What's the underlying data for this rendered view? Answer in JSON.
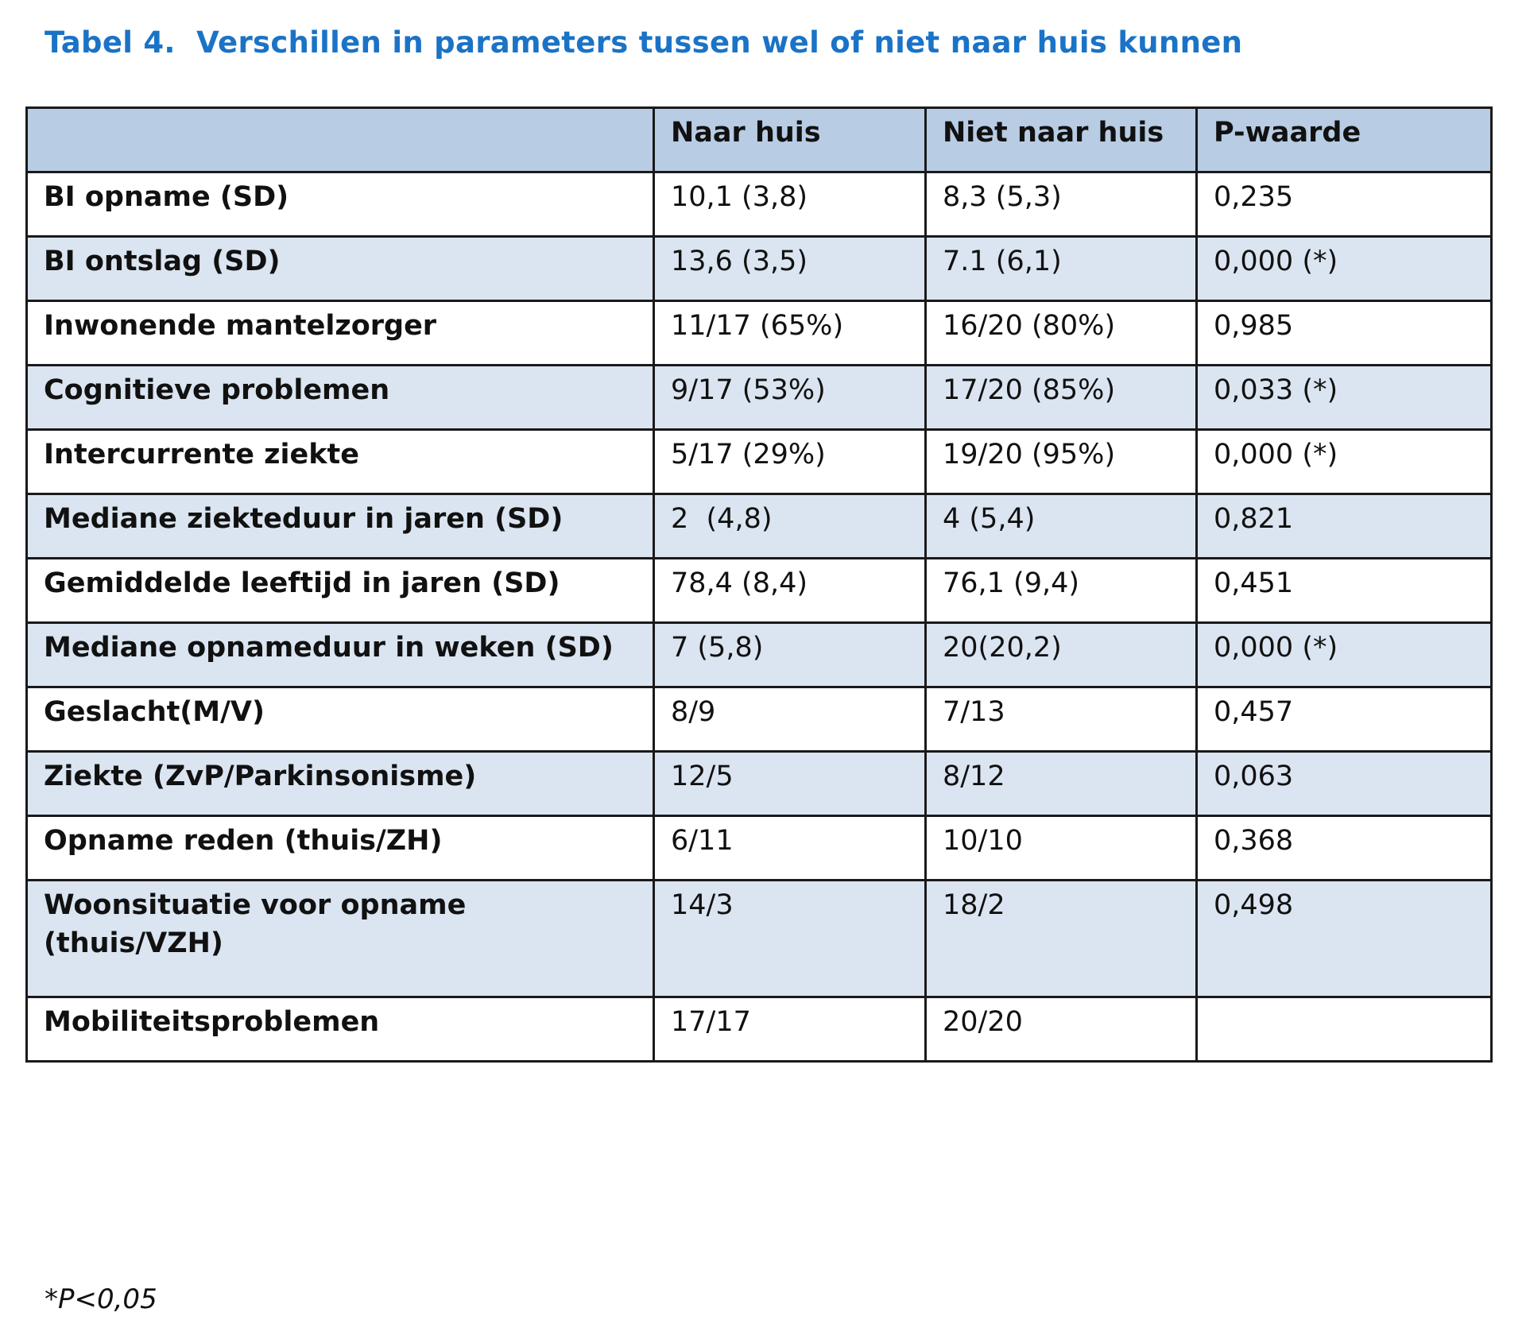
{
  "title": "Tabel 4.  Verschillen in parameters tussen wel of niet naar huis kunnen",
  "table": {
    "headers": [
      "",
      "Naar huis",
      "Niet naar huis",
      "P-waarde"
    ],
    "rows": [
      {
        "label": "BI opname (SD)",
        "naar_huis": "10,1 (3,8)",
        "niet_naar_huis": "8,3 (5,3)",
        "p": "0,235"
      },
      {
        "label": "BI ontslag (SD)",
        "naar_huis": "13,6 (3,5)",
        "niet_naar_huis": "7.1 (6,1)",
        "p": "0,000 (*)"
      },
      {
        "label": "Inwonende mantelzorger",
        "naar_huis": "11/17 (65%)",
        "niet_naar_huis": "16/20 (80%)",
        "p": "0,985"
      },
      {
        "label": "Cognitieve problemen",
        "naar_huis": "9/17 (53%)",
        "niet_naar_huis": "17/20 (85%)",
        "p": "0,033 (*)"
      },
      {
        "label": "Intercurrente ziekte",
        "naar_huis": "5/17 (29%)",
        "niet_naar_huis": "19/20 (95%)",
        "p": "0,000 (*)"
      },
      {
        "label": "Mediane ziekteduur in jaren (SD)",
        "naar_huis": "2  (4,8)",
        "niet_naar_huis": "4 (5,4)",
        "p": "0,821"
      },
      {
        "label": "Gemiddelde leeftijd in jaren (SD)",
        "naar_huis": "78,4 (8,4)",
        "niet_naar_huis": "76,1 (9,4)",
        "p": "0,451"
      },
      {
        "label": "Mediane opnameduur in weken (SD)",
        "naar_huis": "7 (5,8)",
        "niet_naar_huis": "20(20,2)",
        "p": "0,000 (*)"
      },
      {
        "label": "Geslacht(M/V)",
        "naar_huis": "8/9",
        "niet_naar_huis": "7/13",
        "p": "0,457"
      },
      {
        "label": "Ziekte (ZvP/Parkinsonisme)",
        "naar_huis": "12/5",
        "niet_naar_huis": "8/12",
        "p": "0,063"
      },
      {
        "label": "Opname reden (thuis/ZH)",
        "naar_huis": "6/11",
        "niet_naar_huis": "10/10",
        "p": "0,368"
      },
      {
        "label": "Woonsituatie voor opname (thuis/VZH)",
        "naar_huis": "14/3",
        "niet_naar_huis": "18/2",
        "p": "0,498"
      },
      {
        "label": "Mobiliteitsproblemen",
        "naar_huis": "17/17",
        "niet_naar_huis": "20/20",
        "p": ""
      }
    ]
  },
  "footnote": "*P<0,05",
  "colors": {
    "title": "#1a73c6",
    "header_bg": "#b8cce4",
    "row_alt_bg": "#dbe5f1",
    "border": "#1a1a1a"
  }
}
